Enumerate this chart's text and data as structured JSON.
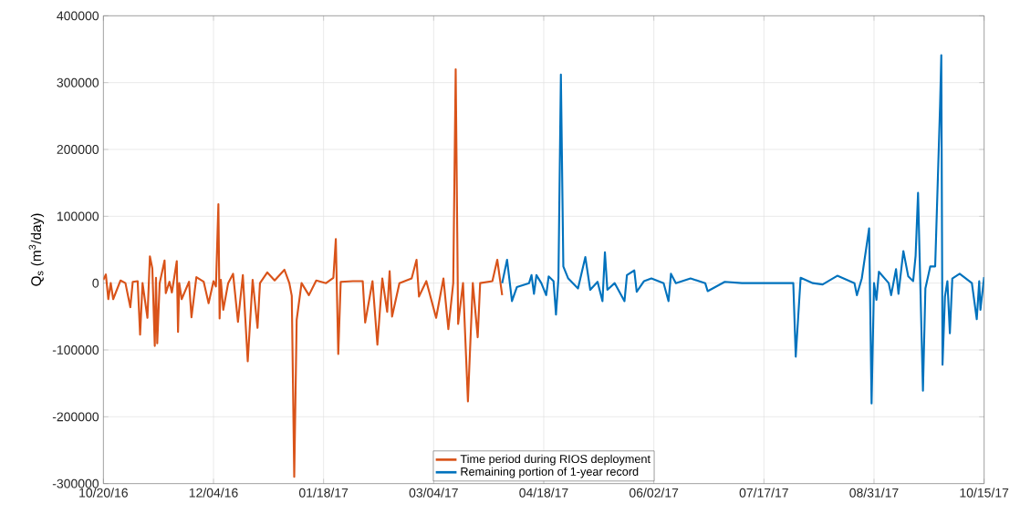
{
  "chart_data": {
    "type": "line",
    "ylabel": "Q$_{s}$ (m$^{3}$/day)",
    "xlim": [
      "2016-10-20",
      "2017-10-15"
    ],
    "xticks": [
      {
        "value": "2016-10-20",
        "label": "10/20/16"
      },
      {
        "value": "2016-12-04",
        "label": "12/04/16"
      },
      {
        "value": "2017-01-18",
        "label": "01/18/17"
      },
      {
        "value": "2017-03-04",
        "label": "03/04/17"
      },
      {
        "value": "2017-04-18",
        "label": "04/18/17"
      },
      {
        "value": "2017-06-02",
        "label": "06/02/17"
      },
      {
        "value": "2017-07-17",
        "label": "07/17/17"
      },
      {
        "value": "2017-08-31",
        "label": "08/31/17"
      },
      {
        "value": "2017-10-15",
        "label": "10/15/17"
      }
    ],
    "ylim": [
      -300000,
      400000
    ],
    "yticks": [
      -300000,
      -200000,
      -100000,
      0,
      100000,
      200000,
      300000,
      400000
    ],
    "grid": true,
    "legend": "bottom",
    "line_style": "solid",
    "series": [
      {
        "name": "Time period during RIOS deployment",
        "color": "#d95319",
        "x": [
          "2016-10-20",
          "2016-10-21",
          "2016-10-22",
          "2016-10-23",
          "2016-10-24",
          "2016-10-27",
          "2016-10-29",
          "2016-10-31",
          "2016-11-01",
          "2016-11-03",
          "2016-11-04",
          "2016-11-05",
          "2016-11-07",
          "2016-11-08",
          "2016-11-09",
          "2016-11-10",
          "2016-11-10T12:00",
          "2016-11-11",
          "2016-11-12",
          "2016-11-14",
          "2016-11-14T12:00",
          "2016-11-16",
          "2016-11-17",
          "2016-11-19",
          "2016-11-19T12:00",
          "2016-11-20",
          "2016-11-21",
          "2016-11-24",
          "2016-11-25",
          "2016-11-27",
          "2016-11-30",
          "2016-12-02",
          "2016-12-04",
          "2016-12-05",
          "2016-12-06",
          "2016-12-06T12:00",
          "2016-12-07",
          "2016-12-08",
          "2016-12-10",
          "2016-12-12",
          "2016-12-14",
          "2016-12-16",
          "2016-12-18",
          "2016-12-20",
          "2016-12-22",
          "2016-12-23",
          "2016-12-26",
          "2016-12-29",
          "2017-01-02",
          "2017-01-04",
          "2017-01-05",
          "2017-01-06",
          "2017-01-07",
          "2017-01-09",
          "2017-01-12",
          "2017-01-15",
          "2017-01-19",
          "2017-01-22",
          "2017-01-23",
          "2017-01-24",
          "2017-01-25",
          "2017-01-30",
          "2017-02-03",
          "2017-02-04",
          "2017-02-07",
          "2017-02-09",
          "2017-02-11",
          "2017-02-13",
          "2017-02-14",
          "2017-02-15",
          "2017-02-18",
          "2017-02-23",
          "2017-02-25",
          "2017-02-26",
          "2017-03-01",
          "2017-03-05",
          "2017-03-08",
          "2017-03-10",
          "2017-03-12",
          "2017-03-13",
          "2017-03-14",
          "2017-03-16",
          "2017-03-18",
          "2017-03-20",
          "2017-03-22",
          "2017-03-23",
          "2017-03-28",
          "2017-03-30",
          "2017-04-01"
        ],
        "values": [
          5000,
          13000,
          -24000,
          0,
          -24000,
          4000,
          0,
          -36000,
          2000,
          3000,
          -77000,
          0,
          -52000,
          40000,
          22000,
          -94000,
          8000,
          -90000,
          0,
          34000,
          -15000,
          2000,
          -14000,
          33000,
          -73000,
          0,
          -24000,
          2000,
          -51000,
          9000,
          2000,
          -30000,
          3000,
          -5000,
          118000,
          -53000,
          5000,
          -40000,
          0,
          14000,
          -58000,
          12000,
          -117000,
          5000,
          -67000,
          0,
          16000,
          4000,
          20000,
          0,
          -19000,
          -290000,
          -55000,
          0,
          -18000,
          4000,
          0,
          8000,
          66000,
          -106000,
          2000,
          3000,
          3000,
          -59000,
          3000,
          -92000,
          7000,
          -43000,
          18000,
          -50000,
          0,
          7000,
          35000,
          -20000,
          3000,
          -52000,
          7000,
          -69000,
          0,
          320000,
          -61000,
          0,
          -177000,
          0,
          -81000,
          0,
          3000,
          35000,
          -18000
        ]
      },
      {
        "name": "Remaining portion of 1-year record",
        "color": "#0072bd",
        "x": [
          "2017-04-01",
          "2017-04-03",
          "2017-04-05",
          "2017-04-07",
          "2017-04-12",
          "2017-04-13",
          "2017-04-14",
          "2017-04-15",
          "2017-04-17",
          "2017-04-19",
          "2017-04-20",
          "2017-04-22",
          "2017-04-23",
          "2017-04-24",
          "2017-04-25",
          "2017-04-26",
          "2017-04-28",
          "2017-05-02",
          "2017-05-05",
          "2017-05-07",
          "2017-05-10",
          "2017-05-12",
          "2017-05-13",
          "2017-05-14",
          "2017-05-17",
          "2017-05-21",
          "2017-05-22",
          "2017-05-25",
          "2017-05-26",
          "2017-05-29",
          "2017-06-01",
          "2017-06-06",
          "2017-06-08",
          "2017-06-09",
          "2017-06-11",
          "2017-06-17",
          "2017-06-23",
          "2017-06-24",
          "2017-07-01",
          "2017-07-08",
          "2017-07-17",
          "2017-07-25",
          "2017-07-29",
          "2017-07-30",
          "2017-08-01",
          "2017-08-06",
          "2017-08-10",
          "2017-08-16",
          "2017-08-23",
          "2017-08-24",
          "2017-08-26",
          "2017-08-27",
          "2017-08-29",
          "2017-08-30",
          "2017-08-31",
          "2017-09-01",
          "2017-09-02",
          "2017-09-06",
          "2017-09-07",
          "2017-09-09",
          "2017-09-10",
          "2017-09-12",
          "2017-09-14",
          "2017-09-16",
          "2017-09-17",
          "2017-09-18",
          "2017-09-20",
          "2017-09-21",
          "2017-09-23",
          "2017-09-25",
          "2017-09-27",
          "2017-09-27T12:00",
          "2017-09-28",
          "2017-09-29",
          "2017-09-30",
          "2017-10-01",
          "2017-10-02",
          "2017-10-05",
          "2017-10-10",
          "2017-10-12",
          "2017-10-13",
          "2017-10-13T12:00",
          "2017-10-15"
        ],
        "values": [
          0,
          35000,
          -27000,
          -6000,
          0,
          12000,
          -16000,
          12000,
          0,
          -18000,
          10000,
          3000,
          -47000,
          7000,
          312000,
          25000,
          7000,
          -8000,
          39000,
          -10000,
          2000,
          -27000,
          46000,
          -10000,
          0,
          -27000,
          12000,
          19000,
          -13000,
          3000,
          7000,
          0,
          -27000,
          14000,
          0,
          7000,
          0,
          -12000,
          2000,
          0,
          0,
          0,
          0,
          -110000,
          8000,
          0,
          -2000,
          11000,
          0,
          -18000,
          7000,
          32000,
          82000,
          -180000,
          0,
          -25000,
          17000,
          0,
          -18000,
          21000,
          -16000,
          48000,
          10000,
          3000,
          41000,
          135000,
          -161000,
          -8000,
          25000,
          25000,
          266000,
          341000,
          -122000,
          -20000,
          3000,
          -75000,
          7000,
          14000,
          0,
          -54000,
          3000,
          -40000,
          9000
        ]
      }
    ]
  }
}
